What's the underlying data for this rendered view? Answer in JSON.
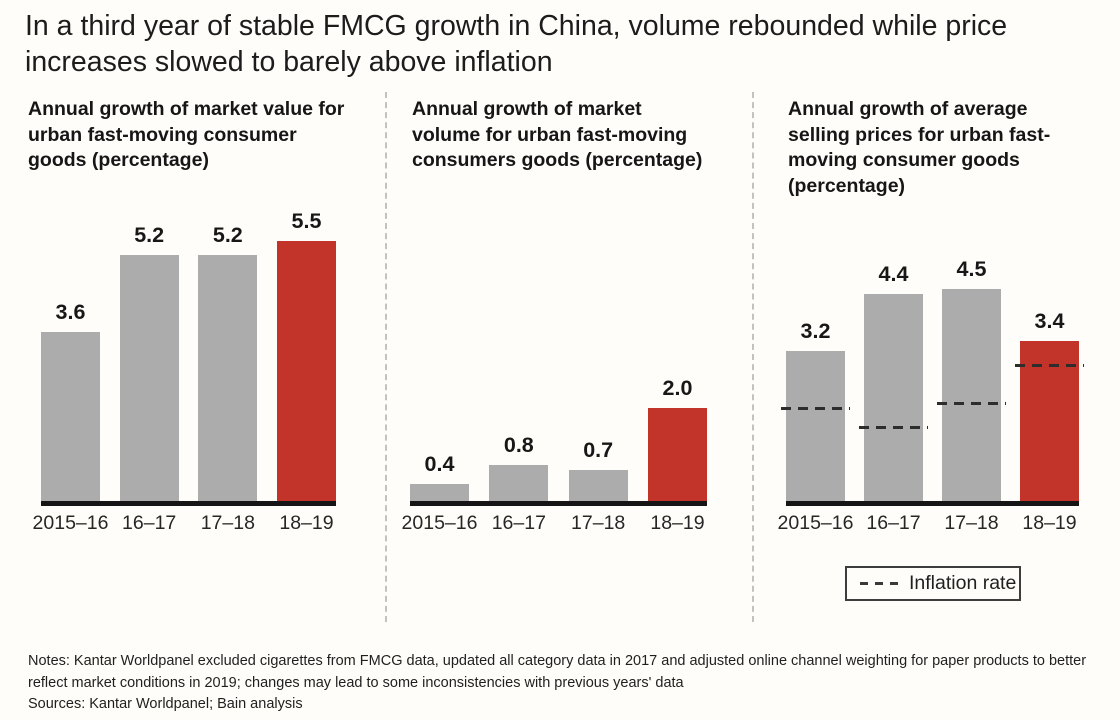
{
  "title": "In a third year of stable FMCG growth in China, volume rebounded while price increases slowed to barely above inflation",
  "colors": {
    "bar_gray": "#acacac",
    "bar_red": "#c23329",
    "baseline": "#151515",
    "inflation_line": "#2d2d2d",
    "background": "#fffdf9"
  },
  "chart_data": [
    {
      "type": "bar",
      "title": "Annual growth of market value for urban fast-moving consumer goods (percentage)",
      "categories": [
        "2015–16",
        "16–17",
        "17–18",
        "18–19"
      ],
      "values": [
        3.6,
        5.2,
        5.2,
        5.5
      ],
      "value_labels": [
        "3.6",
        "5.2",
        "5.2",
        "5.5"
      ],
      "highlight_index": 3,
      "unit": "%",
      "ylim": [
        0,
        6.3
      ],
      "grid": false,
      "legend_position": "none"
    },
    {
      "type": "bar",
      "title": "Annual growth of market volume for urban fast-moving consumers goods (percentage)",
      "categories": [
        "2015–16",
        "16–17",
        "17–18",
        "18–19"
      ],
      "values": [
        0.4,
        0.8,
        0.7,
        2.0
      ],
      "value_labels": [
        "0.4",
        "0.8",
        "0.7",
        "2.0"
      ],
      "highlight_index": 3,
      "unit": "%",
      "ylim": [
        0,
        6.3
      ],
      "grid": false,
      "legend_position": "none"
    },
    {
      "type": "bar",
      "title": "Annual growth of average selling prices for urban fast-moving consumer goods (percentage)",
      "categories": [
        "2015–16",
        "16–17",
        "17–18",
        "18–19"
      ],
      "values": [
        3.2,
        4.4,
        4.5,
        3.4
      ],
      "value_labels": [
        "3.2",
        "4.4",
        "4.5",
        "3.4"
      ],
      "highlight_index": 3,
      "inflation_rate": [
        2.0,
        1.6,
        2.1,
        2.9
      ],
      "unit": "%",
      "ylim": [
        0,
        6.3
      ],
      "grid": false,
      "legend_position": "below"
    }
  ],
  "legend": {
    "label": "Inflation rate"
  },
  "footer": {
    "notes": "Notes: Kantar Worldpanel excluded cigarettes from FMCG data, updated all category data in 2017 and adjusted online channel weighting for paper products to better reflect market conditions in 2019; changes may lead to some inconsistencies with previous years' data",
    "sources": "Sources: Kantar Worldpanel; Bain analysis"
  }
}
